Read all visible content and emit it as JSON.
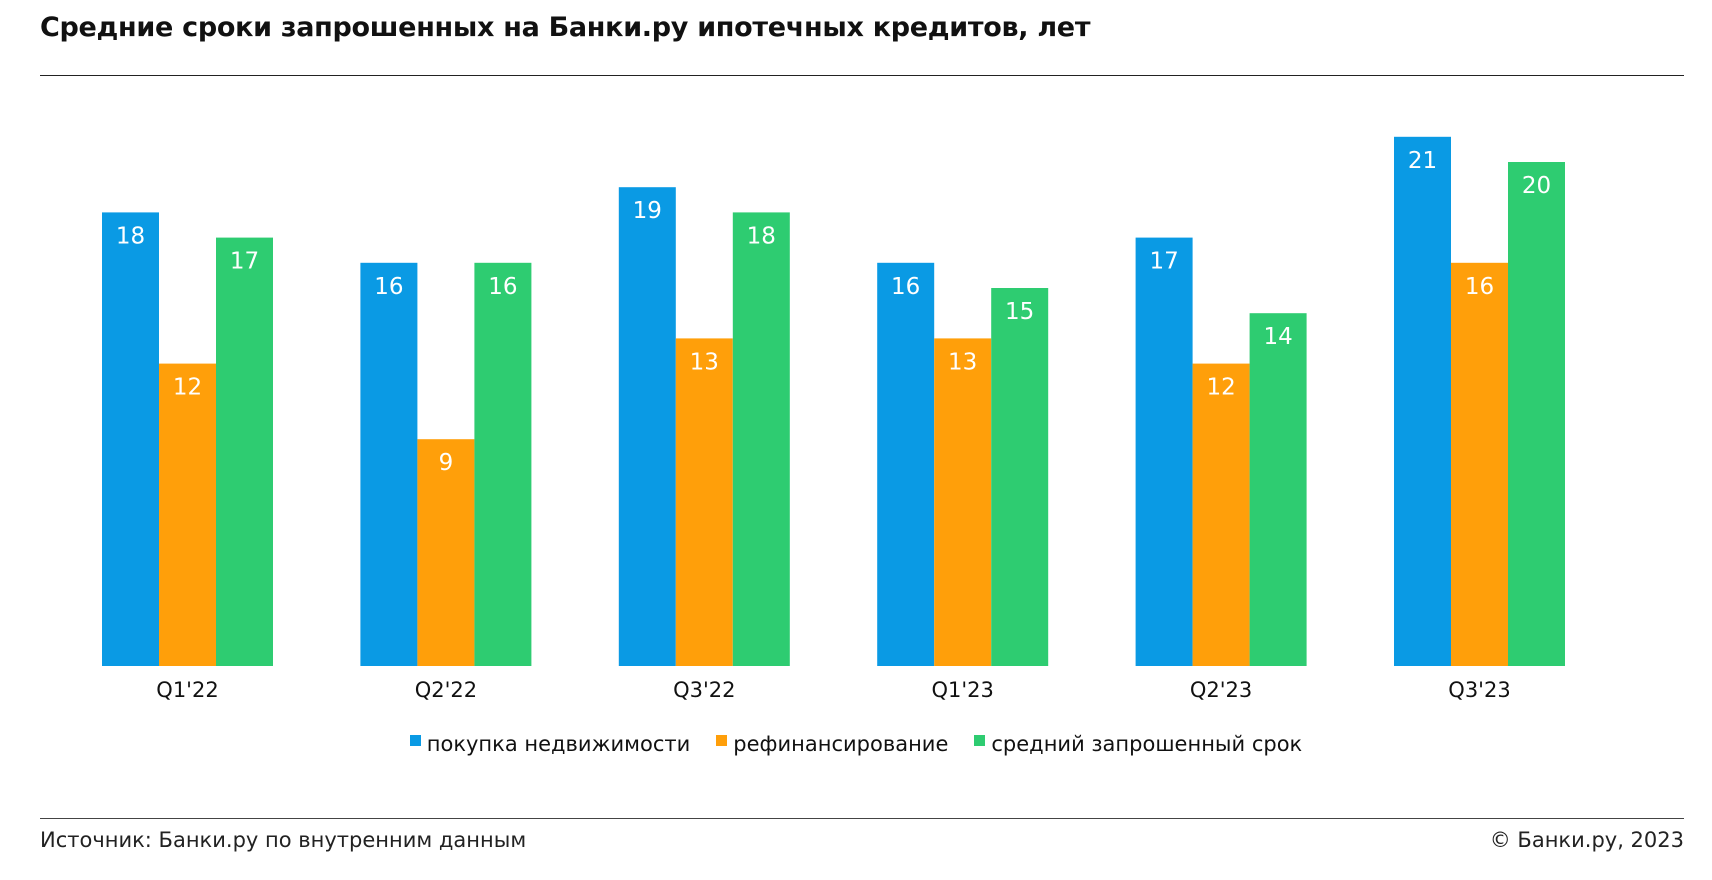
{
  "header": {
    "title": "Средние сроки запрошенных на Банки.ру ипотечных кредитов, лет"
  },
  "chart_data": {
    "type": "bar",
    "title": "Средние сроки запрошенных на Банки.ру ипотечных кредитов, лет",
    "categories": [
      "Q1'22",
      "Q2'22",
      "Q3'22",
      "Q1'23",
      "Q2'23",
      "Q3'23"
    ],
    "series": [
      {
        "name": "покупка недвижимости",
        "color": "#0a9ae4",
        "values": [
          18,
          16,
          19,
          16,
          17,
          21
        ]
      },
      {
        "name": "рефинансирование",
        "color": "#ff9f0a",
        "values": [
          12,
          9,
          13,
          13,
          12,
          16
        ]
      },
      {
        "name": "средний запрошенный срок",
        "color": "#2ecc71",
        "values": [
          17,
          16,
          18,
          15,
          14,
          20
        ]
      }
    ],
    "ylim": [
      0,
      21
    ],
    "grid": false,
    "data_labels": true,
    "legend_position": "bottom-center"
  },
  "footer": {
    "source": "Источник: Банки.ру по внутренним данным",
    "copyright": "© Банки.ру, 2023"
  }
}
